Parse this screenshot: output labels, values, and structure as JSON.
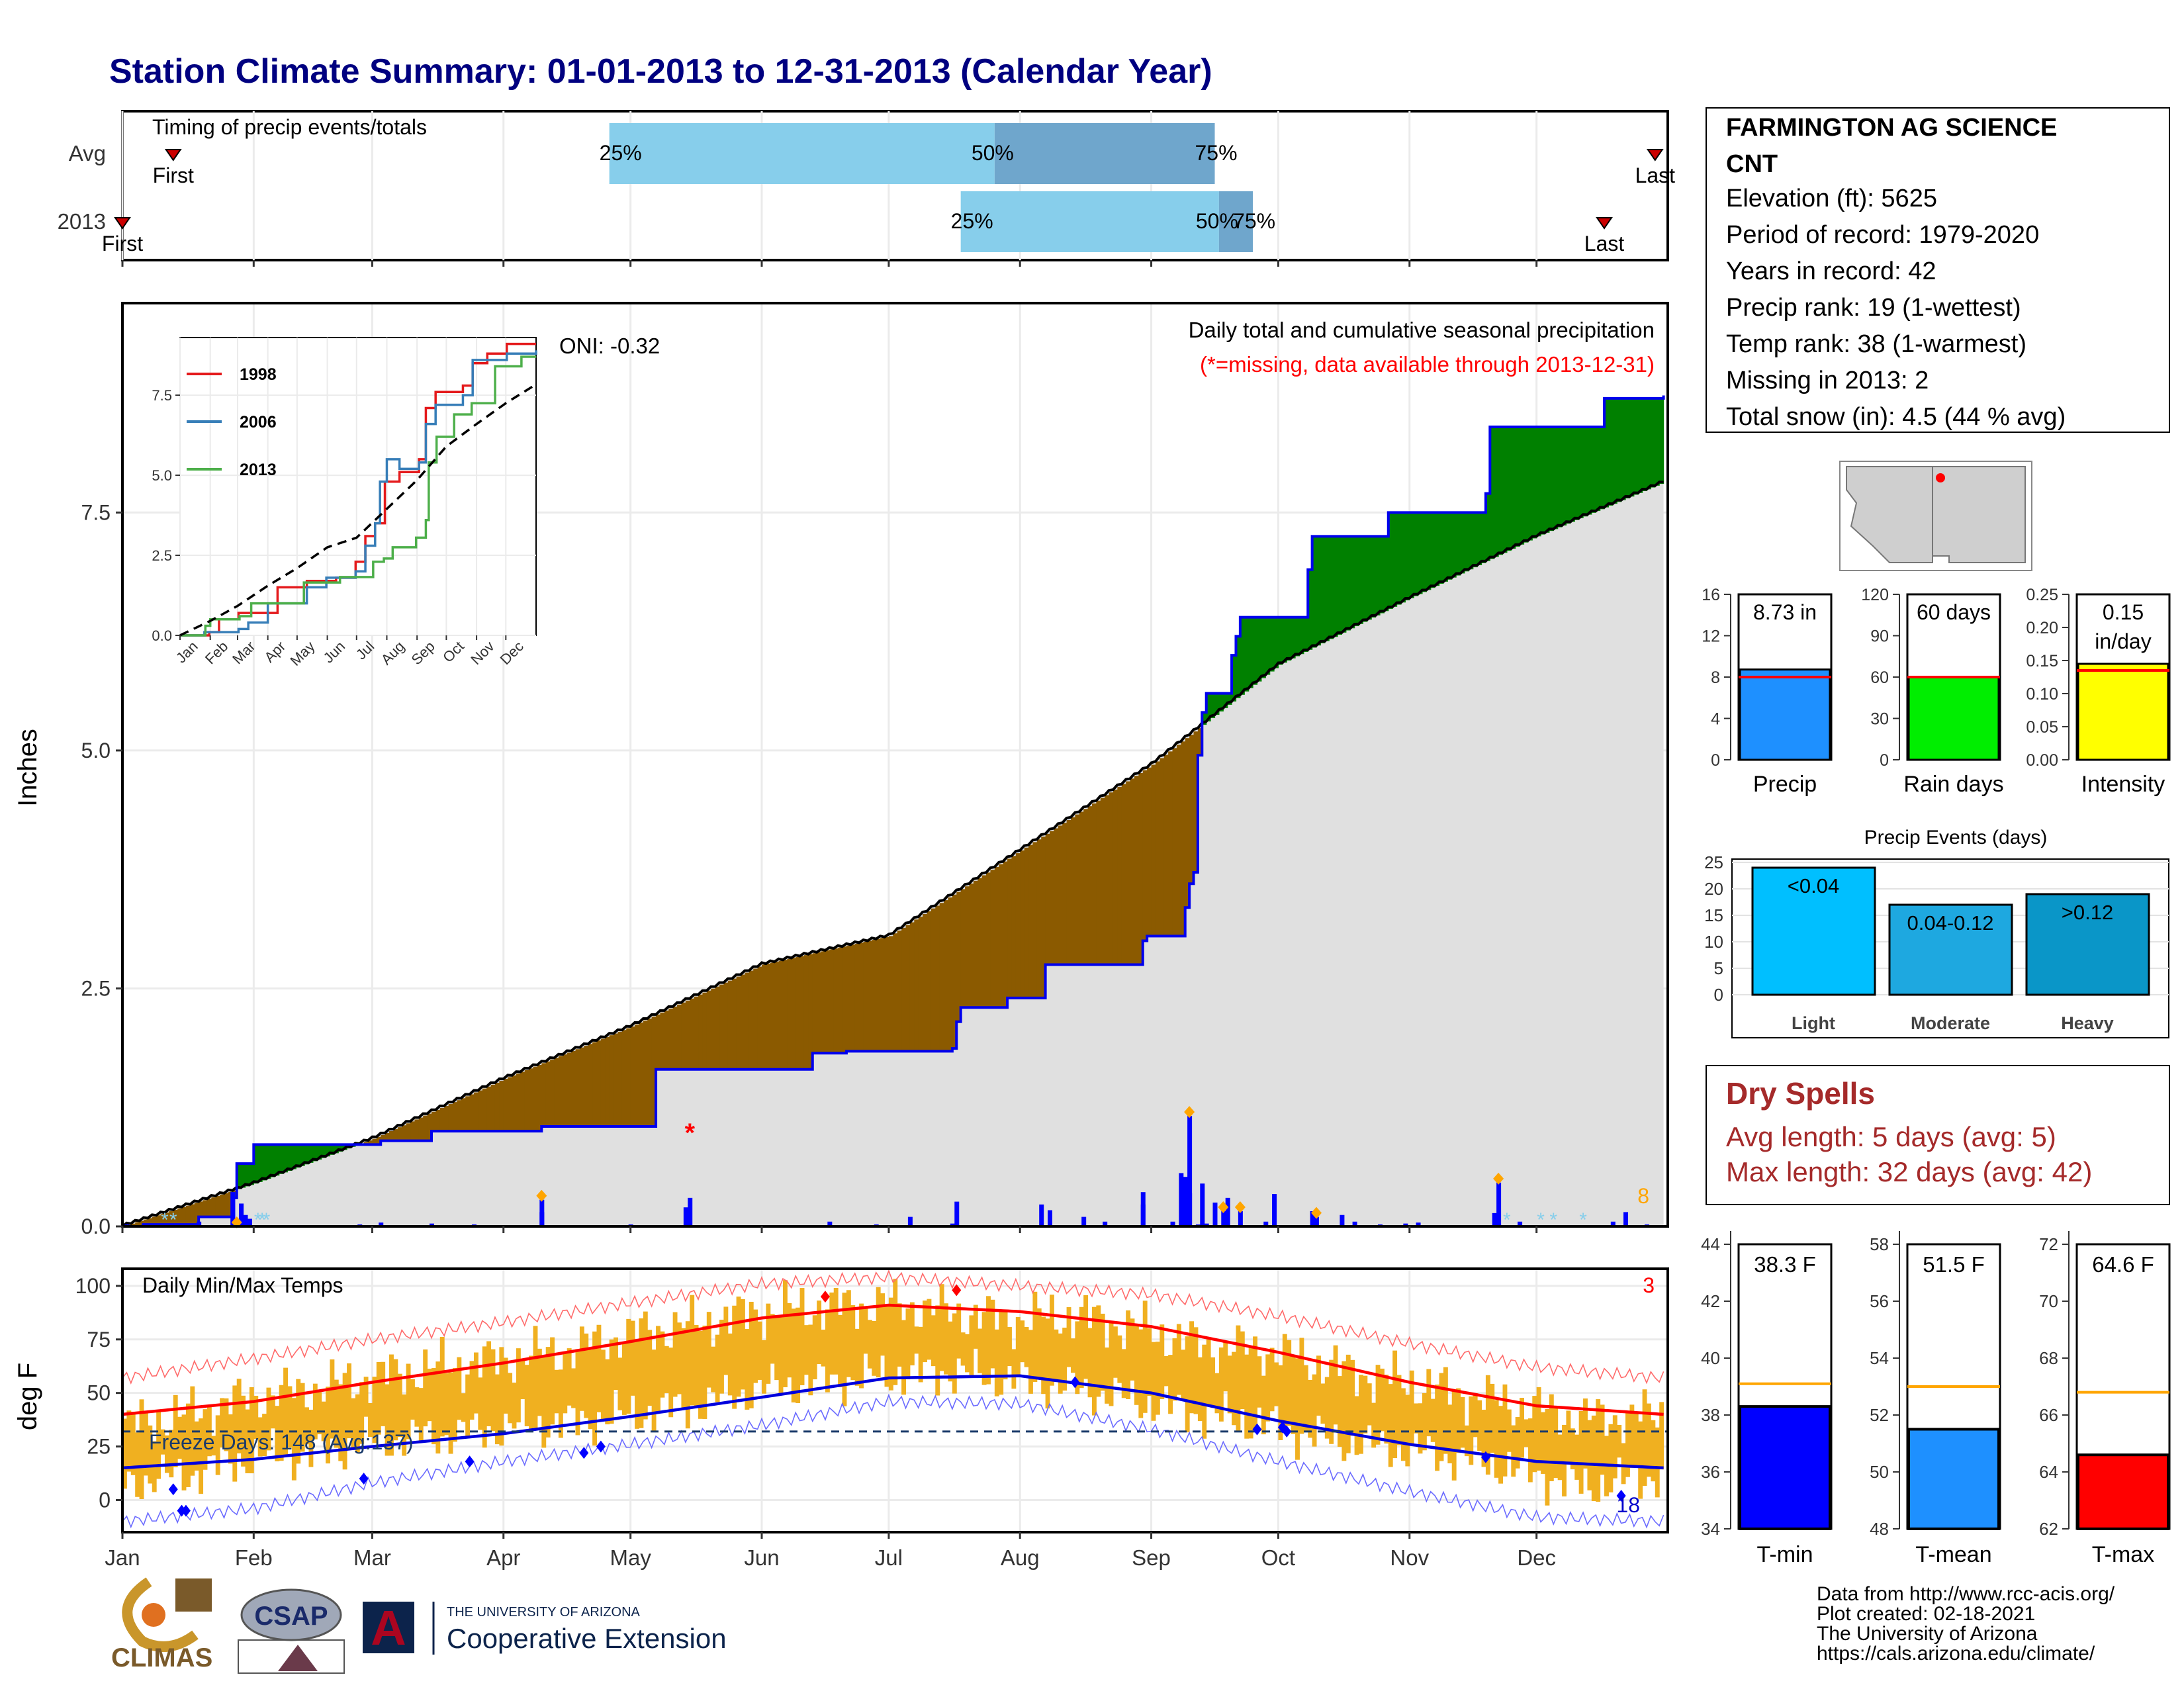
{
  "title": "Station Climate Summary: 01-01-2013 to 12-31-2013 (Calendar Year)",
  "months": [
    "Jan",
    "Feb",
    "Mar",
    "Apr",
    "May",
    "Jun",
    "Jul",
    "Aug",
    "Sep",
    "Oct",
    "Nov",
    "Dec"
  ],
  "timing": {
    "label": "Timing of precip events/totals",
    "rows": [
      {
        "name": "Avg",
        "first_label": "First",
        "last_label": "Last",
        "first_day": 12,
        "last_day": 362,
        "p25_day": 115,
        "p50_day": 206,
        "p75_day": 258,
        "p25_label": "25%",
        "p50_label": "50%",
        "p75_label": "75%"
      },
      {
        "name": "2013",
        "first_label": "First",
        "last_label": "Last",
        "first_day": 0,
        "last_day": 350,
        "p25_day": 198,
        "p50_day": 259,
        "p75_day": 267,
        "p25_label": "25%",
        "p50_label": "50%",
        "p75_label": "75%"
      }
    ]
  },
  "precip_main": {
    "ylabel": "Inches",
    "ylim": [
      0,
      9.7
    ],
    "yticks": [
      0.0,
      2.5,
      5.0,
      7.5
    ],
    "ytick_labels": [
      "0.0",
      "2.5",
      "5.0",
      "7.5"
    ],
    "title": "Daily total and cumulative seasonal precipitation",
    "missing_note": "(*=missing, data available through 2013-12-31)",
    "oni_label": "ONI: -0.32",
    "corner_count": "8",
    "avg_cumulative": {
      "x": [
        0,
        31,
        59,
        90,
        120,
        151,
        181,
        212,
        243,
        273,
        304,
        334,
        364
      ],
      "y": [
        0,
        0.45,
        0.92,
        1.55,
        2.1,
        2.75,
        3.05,
        3.95,
        4.85,
        5.9,
        6.6,
        7.25,
        7.82
      ]
    },
    "obs_cumulative": {
      "x": [
        0,
        5,
        18,
        26,
        27,
        31,
        33,
        45,
        60,
        61,
        70,
        73,
        90,
        99,
        100,
        126,
        127,
        163,
        164,
        171,
        172,
        196,
        197,
        198,
        208,
        209,
        217,
        218,
        220,
        241,
        242,
        250,
        251,
        252,
        253,
        254,
        255,
        256,
        262,
        263,
        264,
        280,
        281,
        298,
        299,
        322,
        323,
        350,
        364
      ],
      "y": [
        0.0,
        0.02,
        0.1,
        0.3,
        0.66,
        0.86,
        0.86,
        0.86,
        0.86,
        0.9,
        0.9,
        1.0,
        1.0,
        1.05,
        1.05,
        1.65,
        1.65,
        1.82,
        1.82,
        1.84,
        1.84,
        1.87,
        2.15,
        2.3,
        2.3,
        2.4,
        2.4,
        2.75,
        2.75,
        3.0,
        3.05,
        3.05,
        3.35,
        3.6,
        3.72,
        4.95,
        5.4,
        5.6,
        6.0,
        6.2,
        6.4,
        6.9,
        7.25,
        7.25,
        7.5,
        7.7,
        8.4,
        8.7,
        8.73
      ]
    },
    "daily_bars": [
      {
        "day": 1,
        "value": 0.02
      },
      {
        "day": 5,
        "value": 0.03
      },
      {
        "day": 10,
        "value": 0.02
      },
      {
        "day": 18,
        "value": 0.05
      },
      {
        "day": 26,
        "value": 0.36
      },
      {
        "day": 28,
        "value": 0.24
      },
      {
        "day": 29,
        "value": 0.12
      },
      {
        "day": 30,
        "value": 0.08
      },
      {
        "day": 56,
        "value": 0.02
      },
      {
        "day": 61,
        "value": 0.04
      },
      {
        "day": 73,
        "value": 0.03
      },
      {
        "day": 83,
        "value": 0.02
      },
      {
        "day": 99,
        "value": 0.15
      },
      {
        "day": 120,
        "value": 0.02
      },
      {
        "day": 133,
        "value": 0.2
      },
      {
        "day": 134,
        "value": 0.3
      },
      {
        "day": 167,
        "value": 0.05
      },
      {
        "day": 178,
        "value": 0.02
      },
      {
        "day": 196,
        "value": 0.03
      },
      {
        "day": 219,
        "value": 0.17
      },
      {
        "day": 227,
        "value": 0.1
      },
      {
        "day": 232,
        "value": 0.05
      },
      {
        "day": 241,
        "value": 0.23
      },
      {
        "day": 248,
        "value": 0.05
      },
      {
        "day": 252,
        "value": 0.35
      },
      {
        "day": 254,
        "value": 0.02
      },
      {
        "day": 256,
        "value": 0.03
      },
      {
        "day": 270,
        "value": 0.05
      },
      {
        "day": 281,
        "value": 0.16
      },
      {
        "day": 282,
        "value": 0.1
      },
      {
        "day": 288,
        "value": 0.12
      },
      {
        "day": 291,
        "value": 0.05
      },
      {
        "day": 297,
        "value": 0.02
      },
      {
        "day": 303,
        "value": 0.03
      },
      {
        "day": 306,
        "value": 0.04
      },
      {
        "day": 325,
        "value": 0.02
      },
      {
        "day": 352,
        "value": 0.05
      },
      {
        "day": 355,
        "value": 0.15
      },
      {
        "day": 360,
        "value": 0.02
      },
      {
        "day": 384,
        "value": 0.0
      }
    ],
    "daily_bars_hi": [
      {
        "day": 26,
        "value": 0.36
      },
      {
        "day": 99,
        "value": 0.28
      },
      {
        "day": 186,
        "value": 0.1
      },
      {
        "day": 197,
        "value": 0.26
      },
      {
        "day": 217,
        "value": 0.23
      },
      {
        "day": 241,
        "value": 0.36
      },
      {
        "day": 250,
        "value": 0.56
      },
      {
        "day": 251,
        "value": 0.52
      },
      {
        "day": 252,
        "value": 1.16
      },
      {
        "day": 255,
        "value": 0.45
      },
      {
        "day": 258,
        "value": 0.25
      },
      {
        "day": 260,
        "value": 0.16
      },
      {
        "day": 261,
        "value": 0.3
      },
      {
        "day": 264,
        "value": 0.16
      },
      {
        "day": 272,
        "value": 0.34
      },
      {
        "day": 324,
        "value": 0.14
      },
      {
        "day": 325,
        "value": 0.46
      },
      {
        "day": 330,
        "value": 0.05
      }
    ],
    "heavy_days": [
      27,
      99,
      252,
      260,
      264,
      282,
      325
    ],
    "snow_days": [
      10,
      12,
      32,
      33,
      34,
      327,
      335,
      338,
      345
    ],
    "missing_marks": [
      {
        "day": 134,
        "value": 1.0
      }
    ]
  },
  "inset": {
    "yticks": [
      0.0,
      2.5,
      5.0,
      7.5
    ],
    "ytick_labels": [
      "0.0",
      "2.5",
      "5.0",
      "7.5"
    ],
    "legend": [
      {
        "name": "1998",
        "color": "#e41a1c"
      },
      {
        "name": "2006",
        "color": "#377eb8"
      },
      {
        "name": "2013",
        "color": "#4daf4a"
      }
    ],
    "series": [
      {
        "name": "1998",
        "color": "#e41a1c",
        "x": [
          0,
          30,
          40,
          60,
          80,
          100,
          130,
          160,
          180,
          190,
          200,
          210,
          225,
          245,
          252,
          262,
          290,
          300,
          315,
          335,
          365
        ],
        "y": [
          0,
          0.1,
          0.5,
          0.7,
          0.7,
          1.5,
          1.7,
          1.8,
          2.3,
          3.1,
          3.5,
          4.8,
          5.1,
          5.5,
          7.1,
          7.6,
          7.8,
          8.5,
          8.8,
          9.1,
          9.1
        ]
      },
      {
        "name": "2006",
        "color": "#377eb8",
        "x": [
          0,
          25,
          60,
          70,
          90,
          130,
          150,
          180,
          190,
          200,
          205,
          212,
          225,
          245,
          252,
          262,
          290,
          300,
          320,
          335,
          365
        ],
        "y": [
          0,
          0.1,
          0.2,
          0.4,
          1.0,
          1.5,
          1.8,
          2.0,
          2.8,
          3.5,
          4.8,
          5.5,
          5.2,
          5.4,
          6.6,
          7.2,
          7.5,
          8.6,
          8.6,
          8.8,
          8.9
        ]
      },
      {
        "name": "2013",
        "color": "#4daf4a",
        "x": [
          0,
          26,
          31,
          61,
          73,
          100,
          127,
          164,
          198,
          209,
          218,
          242,
          252,
          255,
          263,
          281,
          299,
          323,
          350,
          364
        ],
        "y": [
          0,
          0.3,
          0.5,
          0.6,
          1.0,
          1.0,
          1.65,
          1.82,
          2.3,
          2.4,
          2.75,
          3.05,
          3.6,
          5.4,
          6.2,
          6.9,
          7.25,
          8.4,
          8.7,
          8.73
        ]
      }
    ],
    "avg": {
      "x": [
        0,
        31,
        59,
        90,
        120,
        151,
        181,
        212,
        243,
        273,
        304,
        334,
        364
      ],
      "y": [
        0,
        0.45,
        0.92,
        1.55,
        2.1,
        2.75,
        3.05,
        3.95,
        4.85,
        5.9,
        6.6,
        7.25,
        7.82
      ]
    }
  },
  "temps": {
    "ylabel": "deg F",
    "title": "Daily Min/Max Temps",
    "ylim": [
      -15,
      108
    ],
    "yticks": [
      0,
      25,
      50,
      75,
      100
    ],
    "ytick_labels": [
      "0",
      "25",
      "50",
      "75",
      "100"
    ],
    "freeze_label": "Freeze Days: 148 (Avg:137)",
    "freeze_line": 32,
    "count_hot": "3",
    "count_cold": "18",
    "avg_max": {
      "x": [
        0,
        31,
        59,
        90,
        120,
        151,
        181,
        212,
        243,
        273,
        304,
        334,
        364
      ],
      "y": [
        40,
        46,
        55,
        64,
        74,
        85,
        91,
        88,
        81,
        69,
        55,
        44,
        40
      ]
    },
    "avg_min": {
      "x": [
        0,
        31,
        59,
        90,
        120,
        151,
        181,
        212,
        243,
        273,
        304,
        334,
        364
      ],
      "y": [
        15,
        19,
        25,
        31,
        39,
        48,
        57,
        58,
        50,
        37,
        26,
        18,
        15
      ]
    },
    "rec_max": {
      "x": [
        0,
        31,
        59,
        90,
        120,
        151,
        181,
        212,
        243,
        273,
        304,
        334,
        364
      ],
      "y": [
        57,
        66,
        75,
        83,
        92,
        101,
        104,
        100,
        96,
        86,
        73,
        62,
        57
      ]
    },
    "rec_min": {
      "x": [
        0,
        31,
        59,
        90,
        120,
        151,
        181,
        212,
        243,
        273,
        304,
        334,
        364
      ],
      "y": [
        -10,
        -4,
        8,
        18,
        26,
        35,
        46,
        45,
        33,
        18,
        4,
        -8,
        -10
      ]
    },
    "obs_max": {
      "x": [
        0,
        15,
        30,
        45,
        60,
        75,
        90,
        105,
        120,
        135,
        150,
        165,
        180,
        195,
        210,
        225,
        240,
        255,
        270,
        285,
        300,
        315,
        330,
        345,
        364
      ],
      "y": [
        35,
        40,
        48,
        52,
        58,
        62,
        66,
        70,
        78,
        82,
        88,
        90,
        92,
        88,
        84,
        86,
        80,
        72,
        70,
        62,
        56,
        50,
        44,
        38,
        40
      ]
    },
    "obs_min": {
      "x": [
        0,
        15,
        30,
        45,
        60,
        75,
        90,
        105,
        120,
        135,
        150,
        165,
        180,
        195,
        210,
        225,
        240,
        255,
        270,
        285,
        300,
        315,
        330,
        345,
        364
      ],
      "y": [
        8,
        12,
        20,
        22,
        28,
        30,
        34,
        36,
        40,
        44,
        52,
        55,
        58,
        60,
        56,
        52,
        46,
        40,
        35,
        28,
        24,
        20,
        14,
        6,
        12
      ]
    },
    "cold_marks": [
      {
        "day": 12,
        "value": 5
      },
      {
        "day": 14,
        "value": -5
      },
      {
        "day": 15,
        "value": -5
      },
      {
        "day": 57,
        "value": 10
      },
      {
        "day": 82,
        "value": 18
      },
      {
        "day": 109,
        "value": 22
      },
      {
        "day": 113,
        "value": 25
      },
      {
        "day": 225,
        "value": 55
      },
      {
        "day": 268,
        "value": 33
      },
      {
        "day": 274,
        "value": 34
      },
      {
        "day": 275,
        "value": 32
      },
      {
        "day": 322,
        "value": 20
      },
      {
        "day": 354,
        "value": 2
      }
    ],
    "hot_marks": [
      {
        "day": 166,
        "value": 95
      },
      {
        "day": 197,
        "value": 98
      }
    ]
  },
  "station": {
    "name": "FARMINGTON AG SCIENCE",
    "name2": "CNT",
    "elevation": "Elevation (ft): 5625",
    "period": "Period of record: 1979-2020",
    "years": "Years in record: 42",
    "precip_rank": "Precip rank: 19 (1-wettest)",
    "temp_rank": "Temp rank: 38 (1-warmest)",
    "missing": "Missing in 2013: 2",
    "snow": "Total snow (in): 4.5 (44 % avg)"
  },
  "summary_bars": [
    {
      "label": "Precip",
      "value_label": "8.73 in",
      "value": 8.73,
      "avg": 8.0,
      "max": 16,
      "ticks": [
        0,
        4,
        8,
        12,
        16
      ],
      "tick_labels": [
        "0",
        "4",
        "8",
        "12",
        "16"
      ],
      "color": "#1e90ff"
    },
    {
      "label": "Rain days",
      "value_label": "60 days",
      "value": 60,
      "avg": 60,
      "max": 120,
      "ticks": [
        0,
        30,
        60,
        90,
        120
      ],
      "tick_labels": [
        "0",
        "30",
        "60",
        "90",
        "120"
      ],
      "color": "#00ee00"
    },
    {
      "label": "Intensity",
      "value_label": "0.15",
      "value_label2": "in/day",
      "value": 0.145,
      "avg": 0.135,
      "max": 0.25,
      "ticks": [
        0,
        0.05,
        0.1,
        0.15,
        0.2,
        0.25
      ],
      "tick_labels": [
        "0.00",
        "0.05",
        "0.10",
        "0.15",
        "0.20",
        "0.25"
      ],
      "color": "#ffff00"
    }
  ],
  "precip_events": {
    "title": "Precip Events (days)",
    "yticks": [
      0,
      5,
      10,
      15,
      20,
      25
    ],
    "ytick_labels": [
      "0",
      "5",
      "10",
      "15",
      "20",
      "25"
    ],
    "max": 25,
    "bars": [
      {
        "label": "Light",
        "value": 24,
        "bar_label": "<0.04",
        "color": "#00bfff"
      },
      {
        "label": "Moderate",
        "value": 17,
        "bar_label": "0.04-0.12",
        "color": "#1ea8e0"
      },
      {
        "label": "Heavy",
        "value": 19,
        "bar_label": ">0.12",
        "color": "#0a96c8"
      }
    ]
  },
  "dry_spells": {
    "title": "Dry Spells",
    "avg_length": "Avg length: 5 days (avg: 5)",
    "max_length": "Max length: 32 days (avg: 42)"
  },
  "temp_bars": [
    {
      "label": "T-min",
      "value_label": "38.3 F",
      "value": 38.3,
      "avg": 39.1,
      "min": 34,
      "max": 44,
      "ticks": [
        34,
        36,
        38,
        40,
        42,
        44
      ],
      "tick_labels": [
        "34",
        "36",
        "38",
        "40",
        "42",
        "44"
      ],
      "color": "#0000ff"
    },
    {
      "label": "T-mean",
      "value_label": "51.5 F",
      "value": 51.5,
      "avg": 53.0,
      "min": 48,
      "max": 58,
      "ticks": [
        48,
        50,
        52,
        54,
        56,
        58
      ],
      "tick_labels": [
        "48",
        "50",
        "52",
        "54",
        "56",
        "58"
      ],
      "color": "#1e90ff"
    },
    {
      "label": "T-max",
      "value_label": "64.6 F",
      "value": 64.6,
      "avg": 66.8,
      "min": 62,
      "max": 72,
      "ticks": [
        62,
        64,
        66,
        68,
        70,
        72
      ],
      "tick_labels": [
        "62",
        "64",
        "66",
        "68",
        "70",
        "72"
      ],
      "color": "#ff0000"
    }
  ],
  "footer": {
    "line1": "Data from http://www.rcc-acis.org/",
    "line2": "Plot created: 02-18-2021",
    "line3": "The University of Arizona",
    "line4": "https://cals.arizona.edu/climate/",
    "climas": "CLIMAS",
    "csap": "CSAP",
    "ua_small": "THE UNIVERSITY OF ARIZONA",
    "ua_big": "Cooperative Extension"
  },
  "colors": {
    "title": "#000080",
    "dry": "#a52a2a",
    "brown": "#8b5a00",
    "green": "#008000",
    "grey": "#e0e0e0"
  }
}
